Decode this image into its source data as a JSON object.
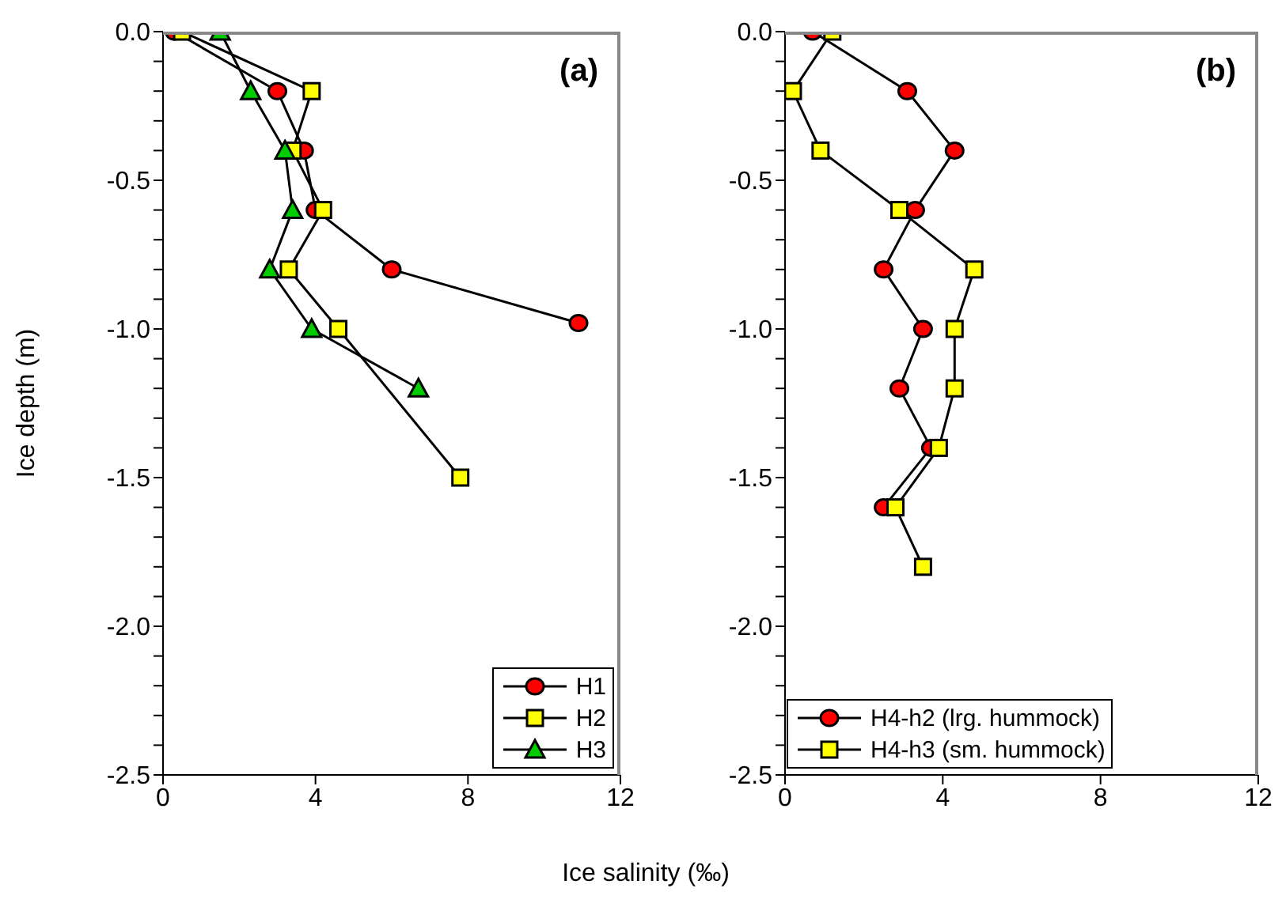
{
  "chart_data": [
    {
      "type": "line",
      "ylabel": "Ice depth (m)",
      "xlabel": "Ice salinity (‰)",
      "annotations": [
        "(a)"
      ],
      "xlim": [
        0,
        12
      ],
      "xticks": [
        0,
        4,
        8,
        12
      ],
      "ylim": [
        -2.5,
        0
      ],
      "yticks": [
        -2.5,
        {
          "value": -2.4,
          "label": null
        },
        {
          "value": -2.3,
          "label": null
        },
        {
          "value": -2.2,
          "label": null
        },
        {
          "value": -2.1,
          "label": null
        },
        "-2.0",
        {
          "value": -1.9,
          "label": null
        },
        {
          "value": -1.8,
          "label": null
        },
        {
          "value": -1.7,
          "label": null
        },
        {
          "value": -1.6,
          "label": null
        },
        -1.5,
        {
          "value": -1.4,
          "label": null
        },
        {
          "value": -1.3,
          "label": null
        },
        {
          "value": -1.2,
          "label": null
        },
        {
          "value": -1.1,
          "label": null
        },
        "-1.0",
        {
          "value": -0.9,
          "label": null
        },
        {
          "value": -0.8,
          "label": null
        },
        {
          "value": -0.7,
          "label": null
        },
        {
          "value": -0.6,
          "label": null
        },
        -0.5,
        {
          "value": -0.4,
          "label": null
        },
        {
          "value": -0.3,
          "label": null
        },
        {
          "value": -0.2,
          "label": null
        },
        {
          "value": -0.1,
          "label": null
        },
        "0.0"
      ],
      "grid": false,
      "legend": "bottom right",
      "series": [
        {
          "name": "H1",
          "color": "#ff0000",
          "marker": "circle",
          "x": [
            0.3,
            3.0,
            3.7,
            4.0,
            6.0,
            10.9
          ],
          "values": [
            0,
            -0.2,
            -0.4,
            -0.6,
            -0.8,
            -0.98
          ]
        },
        {
          "name": "H2",
          "color": "#ffff00",
          "marker": "square",
          "x": [
            0.5,
            3.9,
            3.4,
            4.2,
            3.3,
            4.6,
            7.8
          ],
          "values": [
            0,
            -0.2,
            -0.4,
            -0.6,
            -0.8,
            -1.0,
            -1.5
          ]
        },
        {
          "name": "H3",
          "color": "#00cc00",
          "marker": "triangle",
          "x": [
            1.5,
            2.3,
            3.2,
            3.4,
            2.8,
            3.9,
            6.7
          ],
          "values": [
            0,
            -0.2,
            -0.4,
            -0.6,
            -0.8,
            -1.0,
            -1.2
          ]
        }
      ]
    },
    {
      "type": "line",
      "annotations": [
        "(b)"
      ],
      "xlim": [
        0,
        12
      ],
      "xticks": [
        0,
        4,
        8,
        12
      ],
      "ylim": [
        -2.5,
        0
      ],
      "yticks": [
        -2.5,
        {
          "value": -2.4,
          "label": null
        },
        {
          "value": -2.3,
          "label": null
        },
        {
          "value": -2.2,
          "label": null
        },
        {
          "value": -2.1,
          "label": null
        },
        "-2.0",
        {
          "value": -1.9,
          "label": null
        },
        {
          "value": -1.8,
          "label": null
        },
        {
          "value": -1.7,
          "label": null
        },
        {
          "value": -1.6,
          "label": null
        },
        -1.5,
        {
          "value": -1.4,
          "label": null
        },
        {
          "value": -1.3,
          "label": null
        },
        {
          "value": -1.2,
          "label": null
        },
        {
          "value": -1.1,
          "label": null
        },
        "-1.0",
        {
          "value": -0.9,
          "label": null
        },
        {
          "value": -0.8,
          "label": null
        },
        {
          "value": -0.7,
          "label": null
        },
        {
          "value": -0.6,
          "label": null
        },
        -0.5,
        {
          "value": -0.4,
          "label": null
        },
        {
          "value": -0.3,
          "label": null
        },
        {
          "value": -0.2,
          "label": null
        },
        {
          "value": -0.1,
          "label": null
        },
        "0.0"
      ],
      "grid": false,
      "legend": "bottom left",
      "series": [
        {
          "name": "H4-h2 (lrg. hummock)",
          "color": "#ff0000",
          "marker": "circle",
          "x": [
            0.7,
            3.1,
            4.3,
            3.3,
            2.5,
            3.5,
            2.9,
            3.7,
            2.5
          ],
          "values": [
            0,
            -0.2,
            -0.4,
            -0.6,
            -0.8,
            -1.0,
            -1.2,
            -1.4,
            -1.6
          ]
        },
        {
          "name": "H4-h3 (sm. hummock)",
          "color": "#ffff00",
          "marker": "square",
          "x": [
            1.2,
            0.2,
            0.9,
            2.9,
            4.8,
            4.3,
            4.3,
            3.9,
            2.8,
            3.5
          ],
          "values": [
            0,
            -0.2,
            -0.4,
            -0.6,
            -0.8,
            -1.0,
            -1.2,
            -1.4,
            -1.6,
            -1.8
          ]
        }
      ]
    }
  ]
}
